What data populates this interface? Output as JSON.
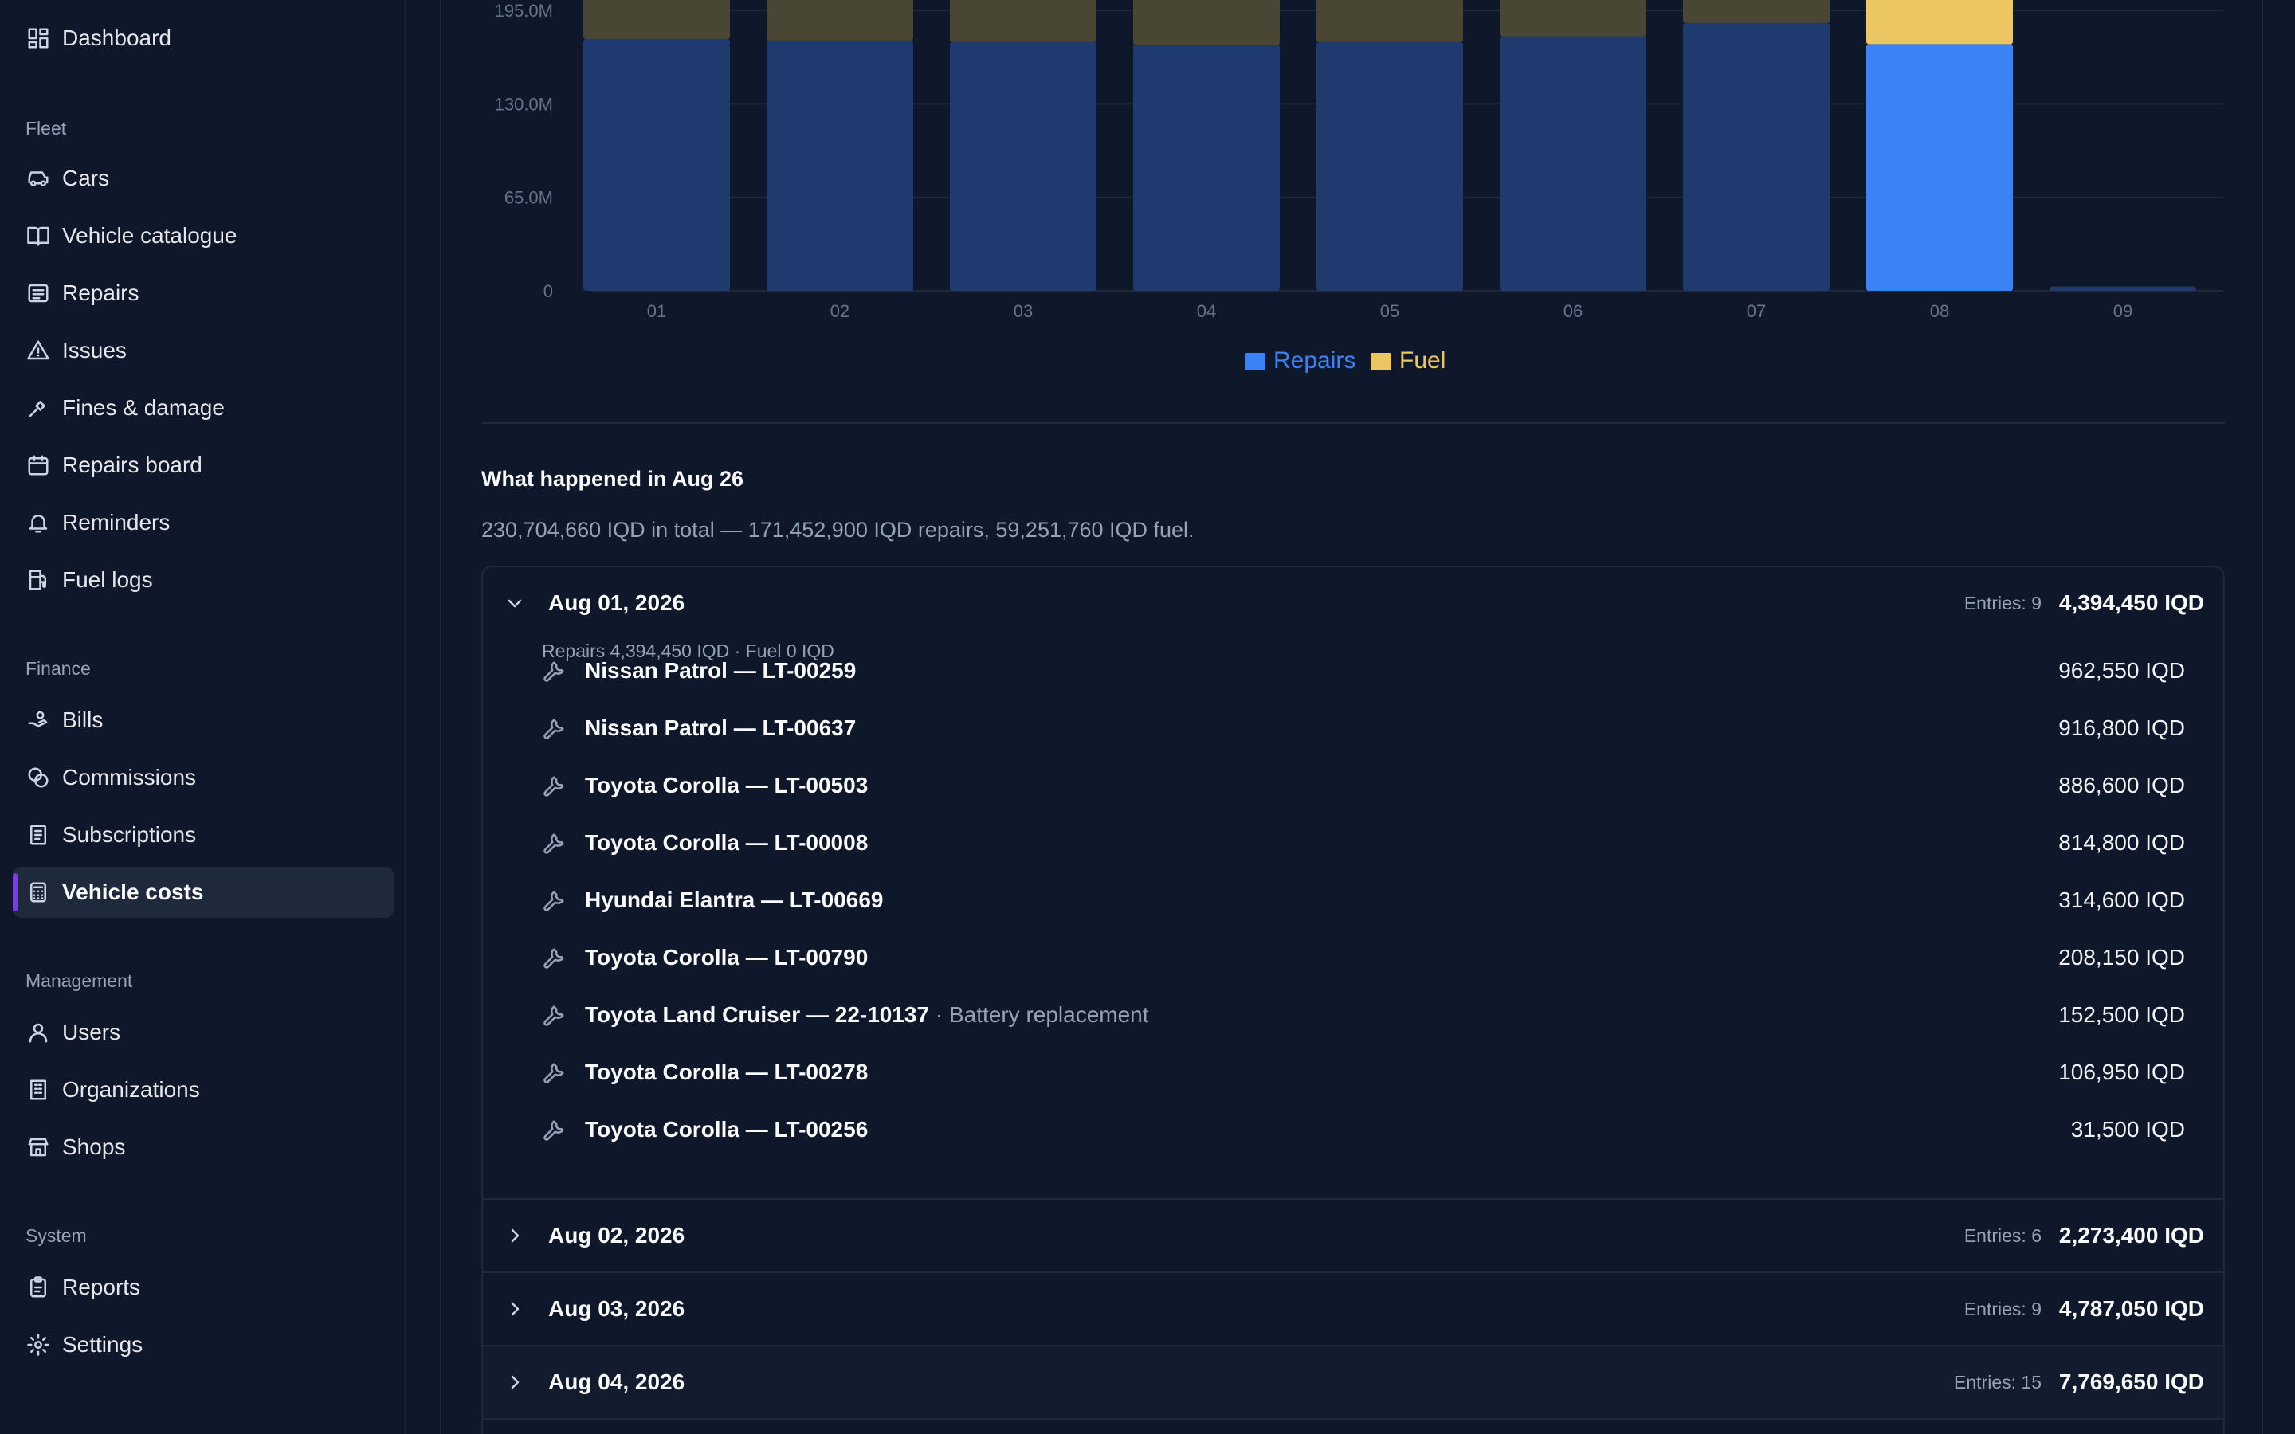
{
  "sidebar": {
    "dashboard": "Dashboard",
    "sections": {
      "fleet": "Fleet",
      "finance": "Finance",
      "management": "Management",
      "system": "System"
    },
    "fleet_items": [
      "Cars",
      "Vehicle catalogue",
      "Repairs",
      "Issues",
      "Fines & damage",
      "Repairs board",
      "Reminders",
      "Fuel logs"
    ],
    "finance_items": [
      "Bills",
      "Commissions",
      "Subscriptions",
      "Vehicle costs"
    ],
    "management_items": [
      "Users",
      "Organizations",
      "Shops"
    ],
    "system_items": [
      "Reports",
      "Settings"
    ],
    "active_item": "Vehicle costs"
  },
  "colors": {
    "repairs": "#3b82f6",
    "fuel": "#eab308",
    "accent": "#7c3aed"
  },
  "chart_data": {
    "type": "bar",
    "stacked": true,
    "categories": [
      "01",
      "02",
      "03",
      "04",
      "05",
      "06",
      "07",
      "08",
      "09"
    ],
    "series": [
      {
        "name": "Repairs",
        "values": [
          175,
          174,
          173,
          171,
          173,
          177,
          186,
          171.5,
          3
        ]
      },
      {
        "name": "Fuel",
        "values": [
          55,
          54,
          55,
          56,
          54,
          52,
          45,
          59.3,
          0
        ]
      }
    ],
    "yticks": [
      "0",
      "65.0M",
      "130.0M",
      "195.0M"
    ],
    "highlighted_category": "08",
    "legend": [
      "Repairs",
      "Fuel"
    ],
    "legend_position": "bottom-center",
    "grid": true
  },
  "summary": {
    "title": "What happened in Aug 26",
    "text": "230,704,660 IQD in total — 171,452,900 IQD repairs, 59,251,760 IQD fuel."
  },
  "days": [
    {
      "date": "Aug 01, 2026",
      "entries_label": "Entries: 9",
      "total": "4,394,450 IQD",
      "expanded": true,
      "sub": "Repairs 4,394,450 IQD · Fuel 0 IQD",
      "items": [
        {
          "title": "Nissan Patrol — LT-00259",
          "note": "",
          "amount": "962,550 IQD"
        },
        {
          "title": "Nissan Patrol — LT-00637",
          "note": "",
          "amount": "916,800 IQD"
        },
        {
          "title": "Toyota Corolla — LT-00503",
          "note": "",
          "amount": "886,600 IQD"
        },
        {
          "title": "Toyota Corolla — LT-00008",
          "note": "",
          "amount": "814,800 IQD"
        },
        {
          "title": "Hyundai Elantra — LT-00669",
          "note": "",
          "amount": "314,600 IQD"
        },
        {
          "title": "Toyota Corolla — LT-00790",
          "note": "",
          "amount": "208,150 IQD"
        },
        {
          "title": "Toyota Land Cruiser — 22-10137",
          "note": " · Battery replacement",
          "amount": "152,500 IQD"
        },
        {
          "title": "Toyota Corolla — LT-00278",
          "note": "",
          "amount": "106,950 IQD"
        },
        {
          "title": "Toyota Corolla — LT-00256",
          "note": "",
          "amount": "31,500 IQD"
        }
      ]
    },
    {
      "date": "Aug 02, 2026",
      "entries_label": "Entries: 6",
      "total": "2,273,400 IQD",
      "expanded": false
    },
    {
      "date": "Aug 03, 2026",
      "entries_label": "Entries: 9",
      "total": "4,787,050 IQD",
      "expanded": false
    },
    {
      "date": "Aug 04, 2026",
      "entries_label": "Entries: 15",
      "total": "7,769,650 IQD",
      "expanded": false
    }
  ]
}
